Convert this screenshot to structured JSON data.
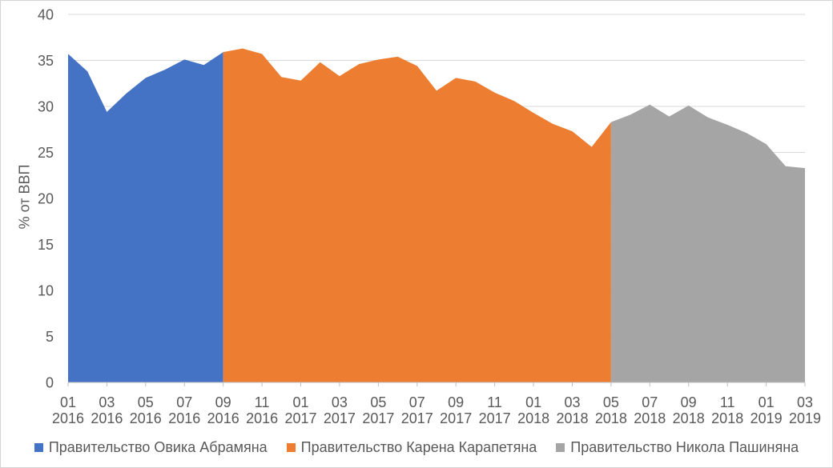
{
  "chart_data": {
    "type": "area",
    "title": "",
    "xlabel": "",
    "ylabel": "% от ВВП",
    "ylim": [
      0,
      40
    ],
    "yticks": [
      0,
      5,
      10,
      15,
      20,
      25,
      30,
      35,
      40
    ],
    "grid": true,
    "legend_position": "bottom",
    "xtick_label_interval": 2,
    "categories": [
      "01 2016",
      "02 2016",
      "03 2016",
      "04 2016",
      "05 2016",
      "06 2016",
      "07 2016",
      "08 2016",
      "09 2016",
      "10 2016",
      "11 2016",
      "12 2016",
      "01 2017",
      "02 2017",
      "03 2017",
      "04 2017",
      "05 2017",
      "06 2017",
      "07 2017",
      "08 2017",
      "09 2017",
      "10 2017",
      "11 2017",
      "12 2017",
      "01 2018",
      "02 2018",
      "03 2018",
      "04 2018",
      "05 2018",
      "06 2018",
      "07 2018",
      "08 2018",
      "09 2018",
      "10 2018",
      "11 2018",
      "12 2018",
      "01 2019",
      "02 2019",
      "03 2019"
    ],
    "series": [
      {
        "name": "Правительство Овика Абрамяна",
        "color": "#4472C4",
        "start_index": 0,
        "values": [
          35.7,
          33.8,
          29.4,
          31.4,
          33.1,
          34.0,
          35.1,
          34.5,
          35.9
        ]
      },
      {
        "name": "Правительство Карена Карапетяна",
        "color": "#ED7D31",
        "start_index": 8,
        "values": [
          35.9,
          36.3,
          35.7,
          33.2,
          32.8,
          34.8,
          33.3,
          34.6,
          35.1,
          35.4,
          34.4,
          31.7,
          33.1,
          32.7,
          31.5,
          30.6,
          29.3,
          28.1,
          27.3,
          25.6,
          28.3
        ]
      },
      {
        "name": "Правительство Никола Пашиняна",
        "color": "#A5A5A5",
        "start_index": 28,
        "values": [
          28.3,
          29.1,
          30.2,
          28.9,
          30.1,
          28.8,
          28.0,
          27.1,
          25.9,
          23.5,
          23.3
        ]
      }
    ],
    "colors": {
      "gridline": "#D9D9D9",
      "axis_line": "#BFBFBF",
      "tick": "#BFBFBF",
      "text": "#595959",
      "background": "#FFFFFF",
      "frame_border": "#D3D3D3"
    }
  }
}
